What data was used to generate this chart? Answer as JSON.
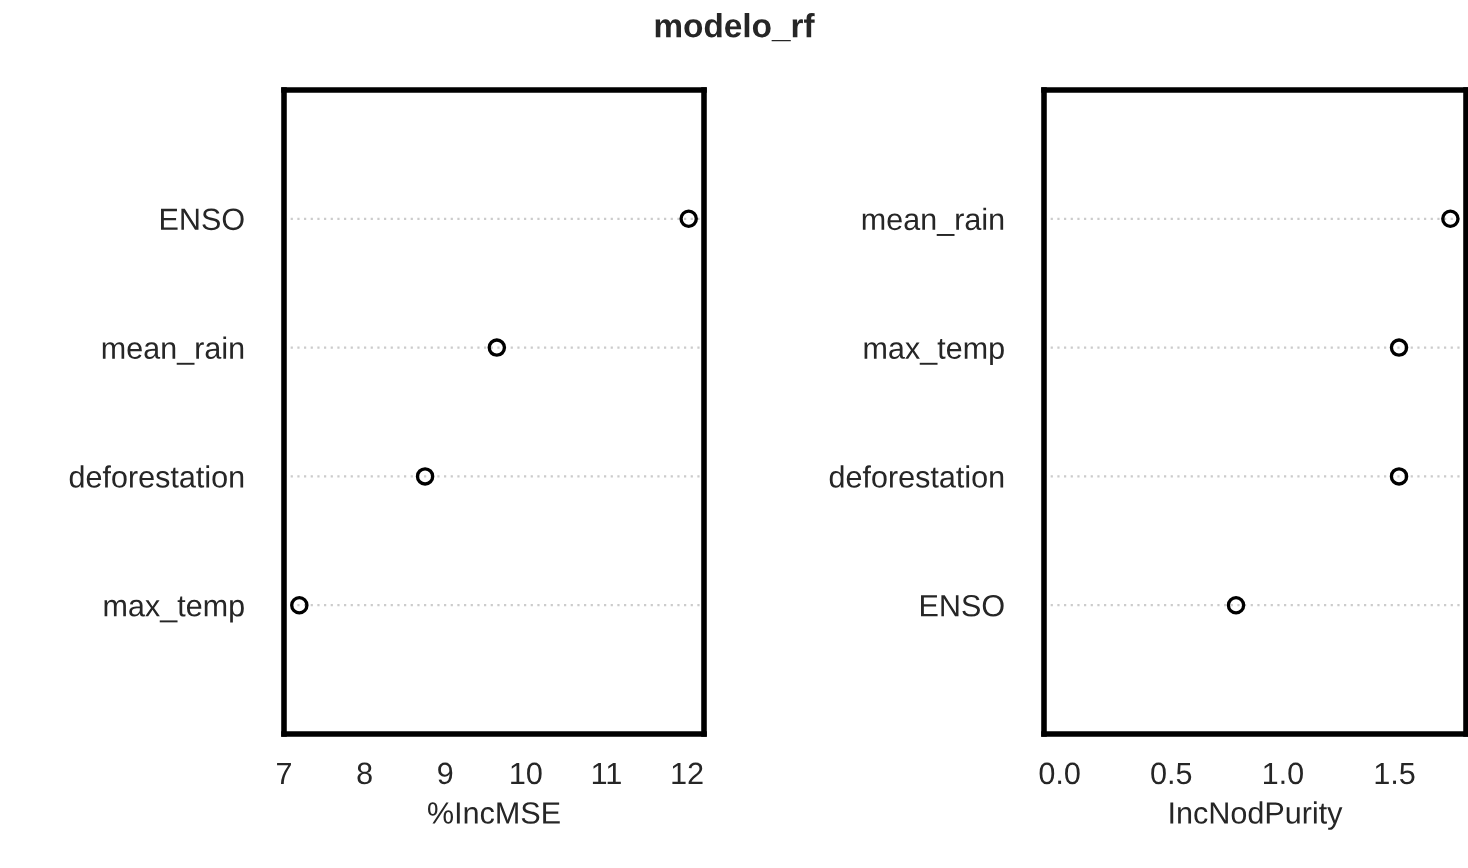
{
  "chart_data": [
    {
      "type": "scatter",
      "title": "modelo_rf",
      "xlabel": "%IncMSE",
      "orientation": "horizontal",
      "categories": [
        "ENSO",
        "mean_rain",
        "deforestation",
        "max_temp"
      ],
      "series": [
        {
          "color": "#000000",
          "values": [
            12.02,
            9.64,
            8.75,
            7.19
          ]
        }
      ],
      "xlim": [
        7.0,
        12.21
      ],
      "xticks": [
        7,
        8,
        9,
        10,
        11,
        12
      ],
      "grid": "y",
      "marker": "circle",
      "legend": false
    },
    {
      "type": "scatter",
      "xlabel": "IncNodPurity",
      "orientation": "horizontal",
      "categories": [
        "mean_rain",
        "max_temp",
        "deforestation",
        "ENSO"
      ],
      "series": [
        {
          "color": "#000000",
          "values": [
            1.75,
            1.52,
            1.52,
            0.79
          ]
        }
      ],
      "xlim": [
        -0.07,
        1.82
      ],
      "xticks": [
        {
          "value": 0,
          "label": "0.0"
        },
        0.5,
        {
          "value": 1,
          "label": "1.0"
        },
        1.5
      ],
      "grid": "y",
      "marker": "circle",
      "legend": false
    }
  ]
}
